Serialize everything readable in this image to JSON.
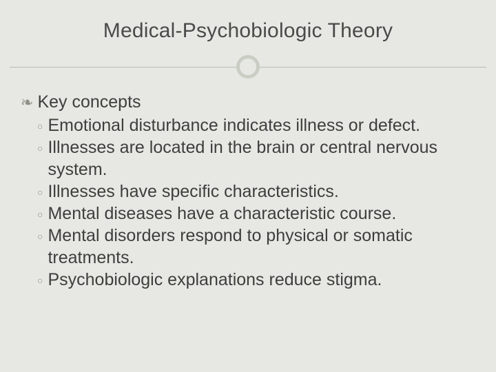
{
  "colors": {
    "slide_background": "#e7e8e3",
    "title_text": "#4a4a48",
    "body_text": "#3e3e3c",
    "bullet_color": "#8f9087",
    "divider_line": "#b9bab2",
    "divider_circle_border": "#c9cdc3"
  },
  "typography": {
    "title_fontsize_pt": 22,
    "body_fontsize_pt": 19,
    "font_family": "Arial"
  },
  "title": "Medical-Psychobiologic Theory",
  "lvl1_bullet_glyph": "❧",
  "lvl2_bullet_glyph": "○",
  "heading": "Key concepts",
  "items": [
    "Emotional disturbance indicates illness or defect.",
    "Illnesses are located in the brain or central nervous system.",
    "Illnesses have specific characteristics.",
    "Mental diseases have a characteristic course.",
    "Mental disorders respond to physical or somatic treatments.",
    "Psychobiologic explanations reduce stigma."
  ]
}
